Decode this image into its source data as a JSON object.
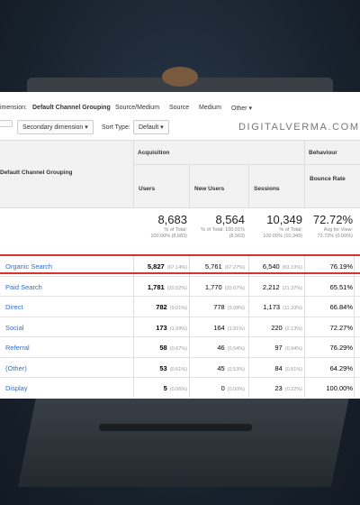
{
  "toolbar": {
    "primary_label": "imension:",
    "primary": "Default Channel Grouping",
    "options": [
      "Source/Medium",
      "Source",
      "Medium",
      "Other ▾"
    ]
  },
  "controls": {
    "secondary": "Secondary dimension ▾",
    "sort_label": "Sort Type:",
    "sort": "Default ▾",
    "watermark": "DIGITALVERMA.COM"
  },
  "table": {
    "dimension_header": "Default Channel Grouping",
    "group_acquisition": "Acquisition",
    "group_behaviour": "Behaviour",
    "columns": [
      "Users",
      "New Users",
      "Sessions",
      "Bounce Rate"
    ],
    "totals": [
      {
        "value": "8,683",
        "note": "% of Total: 100.00% (8,683)"
      },
      {
        "value": "8,564",
        "note": "% of Total: 100.01% (8,563)"
      },
      {
        "value": "10,349",
        "note": "% of Total: 100.00% (10,349)"
      },
      {
        "value": "72.72%",
        "note": "Avg for View: 72.72% (0.00%)"
      }
    ],
    "rows": [
      [
        "Organic Search",
        "5,827",
        "(67.14%)",
        "5,761",
        "(67.27%)",
        "6,540",
        "(63.19%)",
        "76.19%"
      ],
      [
        "Paid Search",
        "1,781",
        "(20.52%)",
        "1,770",
        "(20.67%)",
        "2,212",
        "(21.37%)",
        "65.51%"
      ],
      [
        "Direct",
        "782",
        "(9.01%)",
        "778",
        "(9.08%)",
        "1,173",
        "(11.33%)",
        "66.84%"
      ],
      [
        "Social",
        "173",
        "(1.99%)",
        "164",
        "(1.91%)",
        "220",
        "(2.13%)",
        "72.27%"
      ],
      [
        "Referral",
        "58",
        "(0.67%)",
        "46",
        "(0.54%)",
        "97",
        "(0.94%)",
        "76.29%"
      ],
      [
        "(Other)",
        "53",
        "(0.61%)",
        "45",
        "(0.53%)",
        "84",
        "(0.81%)",
        "64.29%"
      ],
      [
        "Display",
        "5",
        "(0.06%)",
        "0",
        "(0.00%)",
        "23",
        "(0.22%)",
        "100.00%"
      ]
    ]
  }
}
